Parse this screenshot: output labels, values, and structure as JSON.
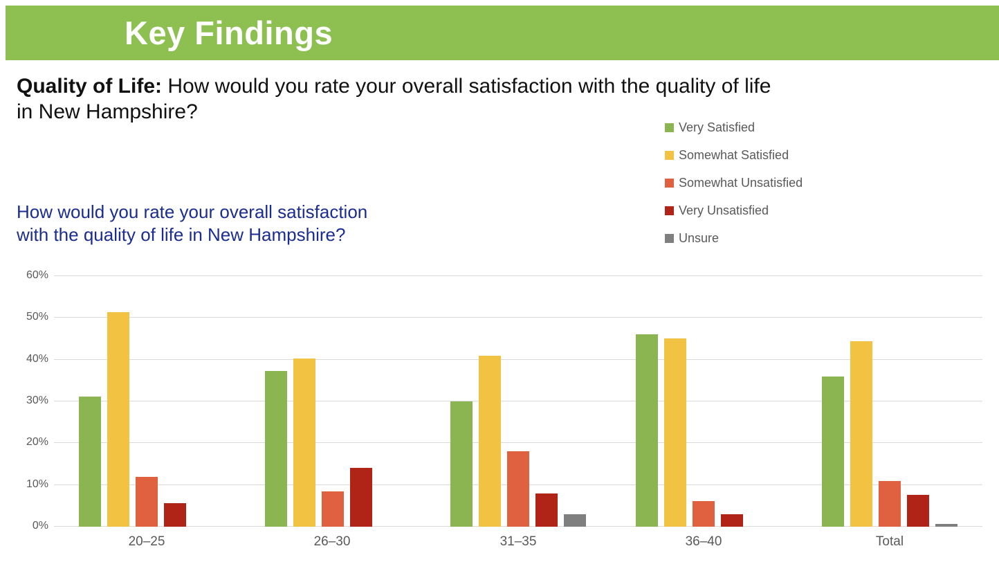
{
  "header": {
    "title": "Key Findings",
    "bg_color": "#8DC051",
    "text_color": "#ffffff"
  },
  "question": {
    "lead": "Quality of Life:",
    "rest": " How would you rate your overall satisfaction with the quality of life",
    "line2": "in New Hampshire?"
  },
  "chart_title": {
    "line1": "How would you rate your overall satisfaction",
    "line2": "with the quality of life in New Hampshire?",
    "color": "#1B2D8F"
  },
  "chart_data": {
    "type": "bar",
    "title": "How would you rate your overall satisfaction with the quality of life in New Hampshire?",
    "categories": [
      "20–25",
      "26–30",
      "31–35",
      "36–40",
      "Total"
    ],
    "series": [
      {
        "name": "Very Satisfied",
        "color": "#8BB551",
        "values": [
          31.2,
          37.3,
          30.0,
          46.0,
          36.0
        ]
      },
      {
        "name": "Somewhat Satisfied",
        "color": "#F2C342",
        "values": [
          51.3,
          40.2,
          41.0,
          45.0,
          44.5
        ]
      },
      {
        "name": "Somewhat Unsatisfied",
        "color": "#E0613F",
        "values": [
          12.0,
          8.5,
          18.0,
          6.1,
          11.0
        ]
      },
      {
        "name": "Very Unsatisfied",
        "color": "#B02418",
        "values": [
          5.6,
          14.1,
          8.0,
          3.0,
          7.7
        ]
      },
      {
        "name": "Unsure",
        "color": "#7F7F7F",
        "values": [
          0.0,
          0.0,
          3.0,
          0.0,
          0.7
        ]
      }
    ],
    "xlabel": "",
    "ylabel": "",
    "ylim": [
      0,
      60
    ],
    "ytick_step": 10,
    "yticks": [
      "0%",
      "10%",
      "20%",
      "30%",
      "40%",
      "50%",
      "60%"
    ],
    "grid": true,
    "legend_position": "upper right",
    "gridline_color": "#d9d9d9",
    "axis_text_color": "#595959"
  }
}
